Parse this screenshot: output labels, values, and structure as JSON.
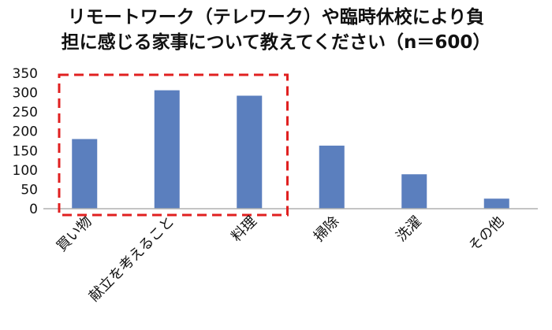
{
  "chart_data": {
    "type": "bar",
    "title_lines": [
      "リモートワーク（テレワーク）や臨時休校により負",
      "担に感じる家事について教えてください（n＝600）"
    ],
    "categories": [
      "買い物",
      "献立を考えること",
      "料理",
      "掃除",
      "洗濯",
      "その他"
    ],
    "values": [
      180,
      306,
      292,
      163,
      89,
      26
    ],
    "ylim": [
      0,
      350
    ],
    "yticks": [
      0,
      50,
      100,
      150,
      200,
      250,
      300,
      350
    ],
    "grid": false,
    "legend": "none",
    "highlight": {
      "categories": [
        "買い物",
        "献立を考えること",
        "料理"
      ],
      "style": "dashed-box"
    },
    "colors": {
      "bar": "#5B7FBE",
      "highlight": "#E02020",
      "axis": "#B0B0B0",
      "text": "#111111"
    }
  }
}
